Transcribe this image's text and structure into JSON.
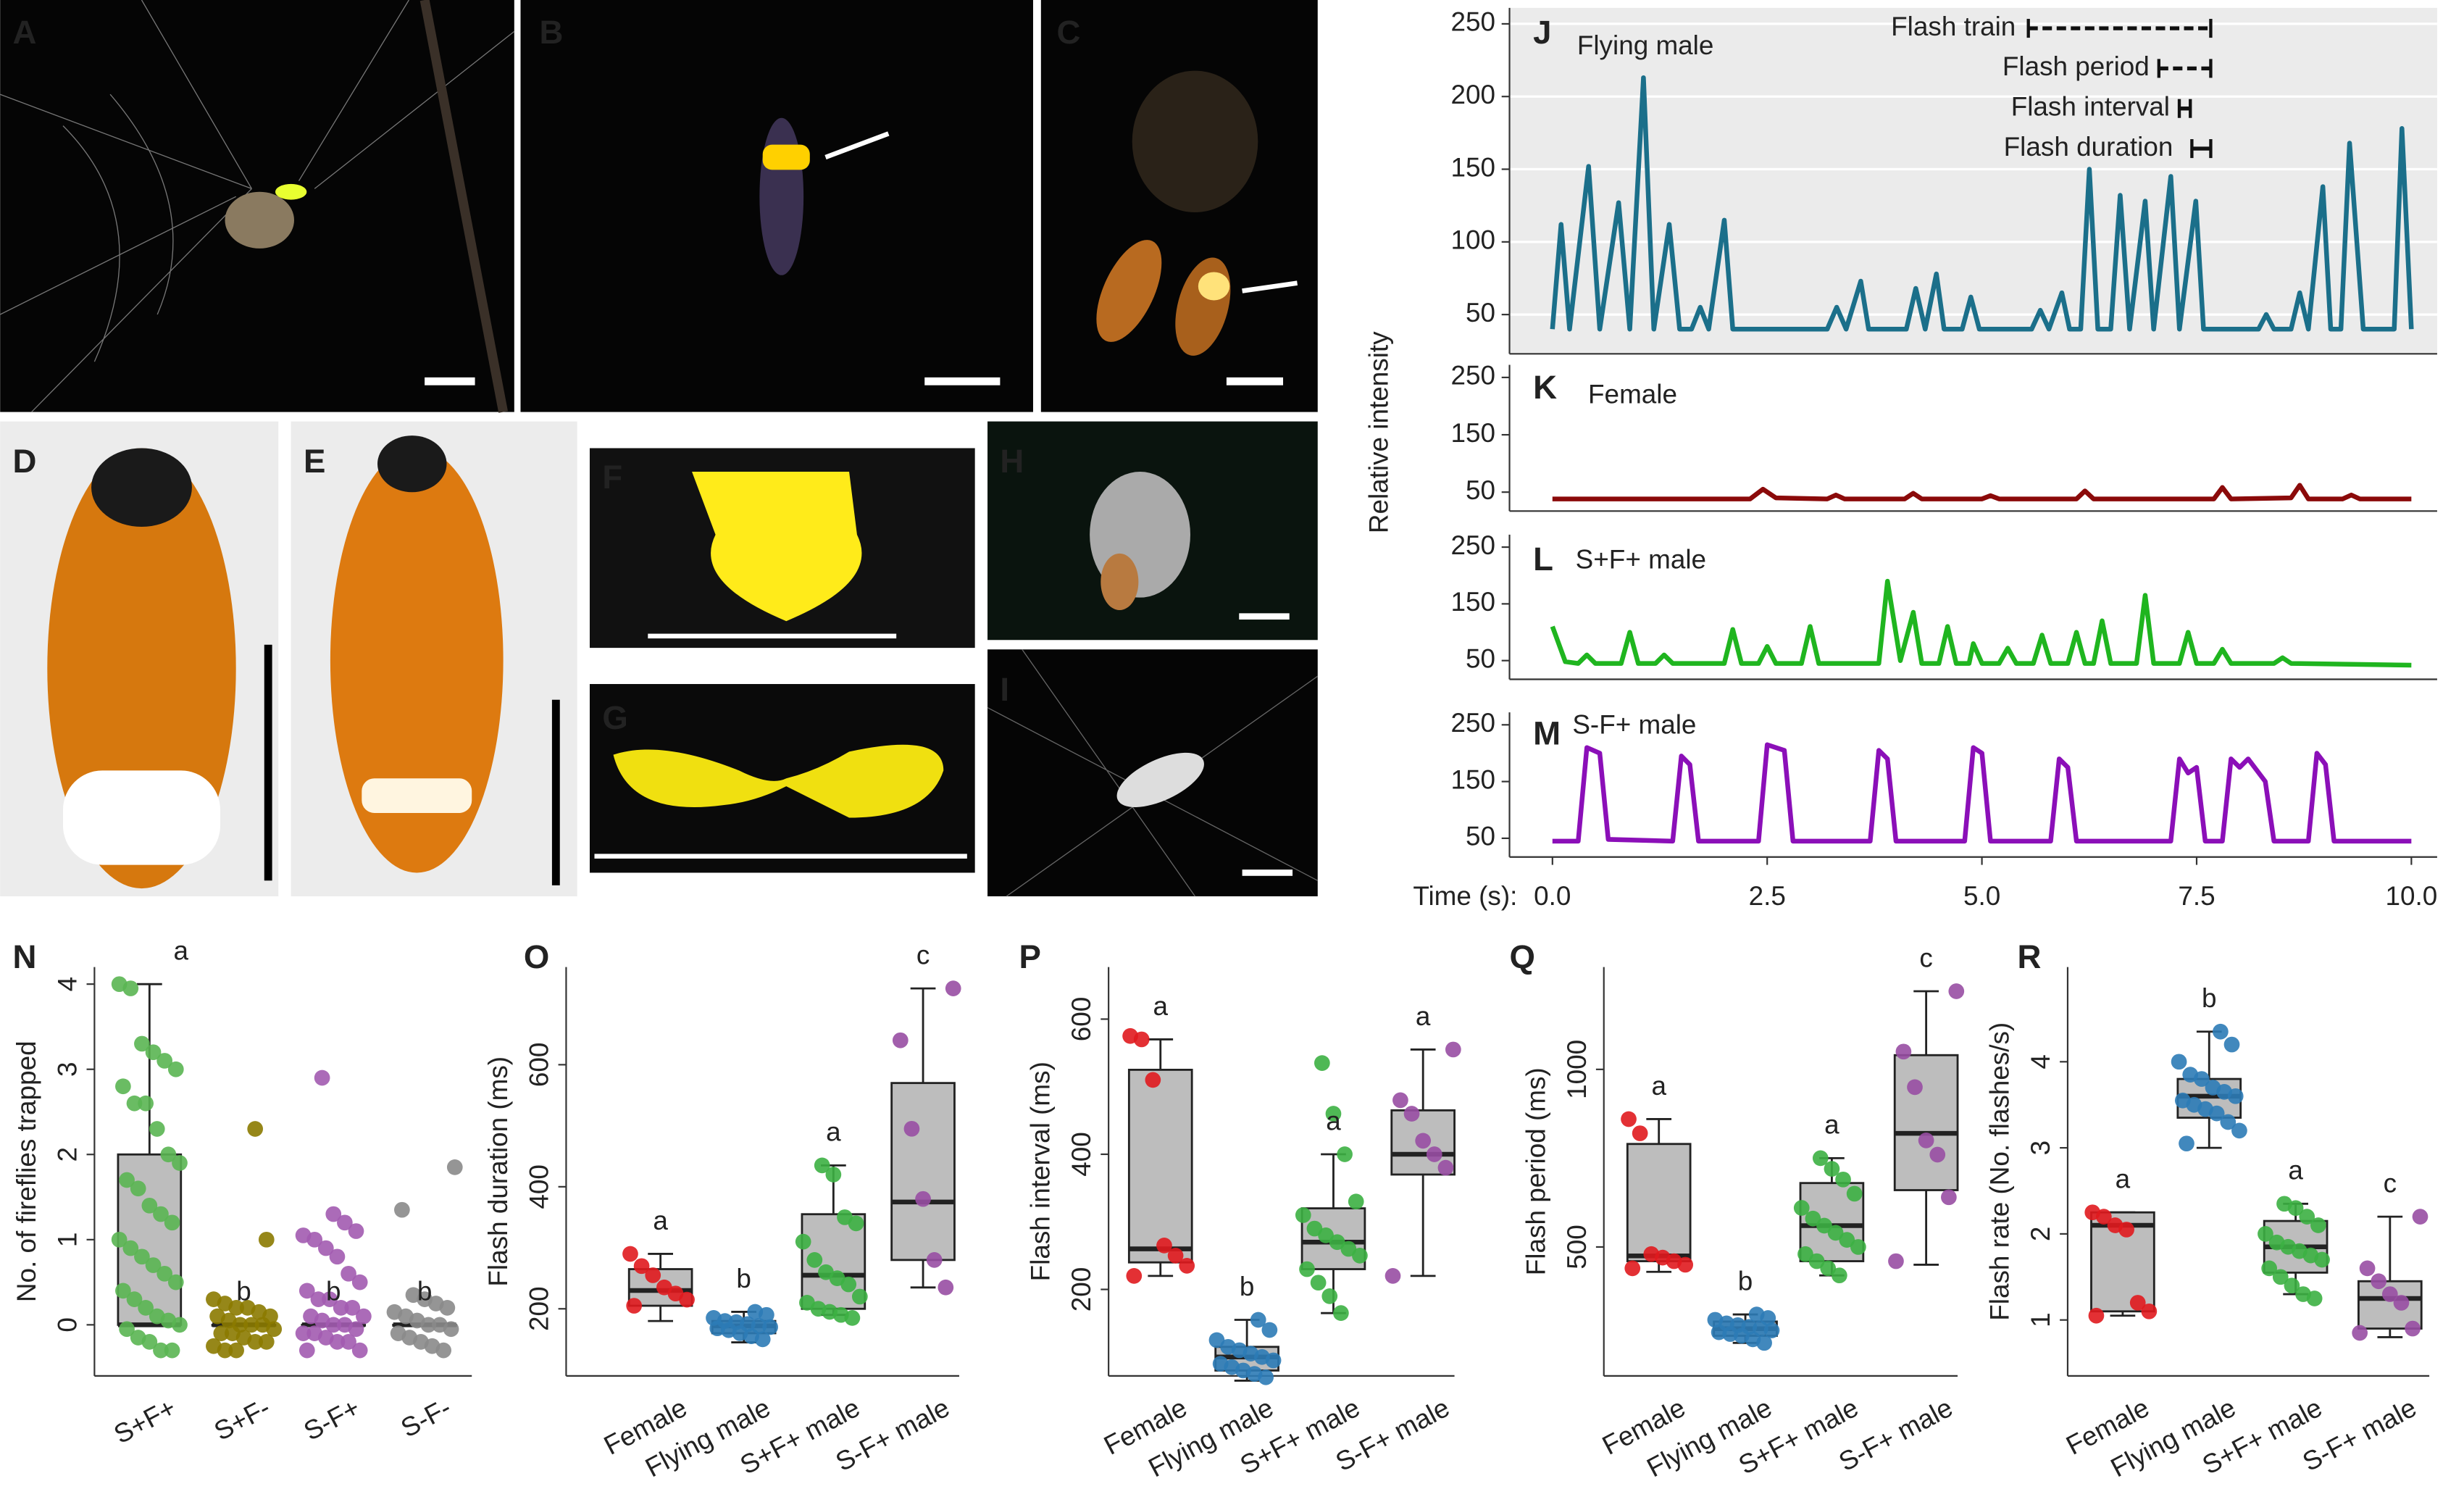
{
  "photo_labels": [
    "A",
    "B",
    "C",
    "D",
    "E",
    "F",
    "G",
    "H",
    "I"
  ],
  "chart_data": [
    {
      "type": "line",
      "label": "J",
      "ylabel": "Relative intensity",
      "grid": true,
      "annotations": [
        "Flash train",
        "Flash period",
        "Flash interval",
        "Flash duration"
      ],
      "xlim": [
        -0.5,
        10.3
      ],
      "ylim": [
        23,
        261
      ],
      "yticks": [
        50,
        100,
        150,
        200,
        250
      ],
      "x": [
        0,
        0.1,
        0.2,
        0.42,
        0.55,
        0.77,
        0.9,
        1.06,
        1.18,
        1.36,
        1.48,
        1.62,
        1.72,
        1.82,
        2.0,
        2.1,
        3.2,
        3.31,
        3.42,
        3.59,
        3.68,
        4.12,
        4.23,
        4.34,
        4.47,
        4.56,
        4.77,
        4.87,
        4.97,
        5.58,
        5.68,
        5.78,
        5.93,
        6.02,
        6.15,
        6.25,
        6.35,
        6.5,
        6.61,
        6.72,
        6.9,
        7.0,
        7.2,
        7.3,
        7.49,
        7.58,
        8.22,
        8.31,
        8.4,
        8.6,
        8.7,
        8.8,
        8.97,
        9.06,
        9.18,
        9.28,
        9.44,
        9.8,
        9.89,
        10.0
      ],
      "series": [
        {
          "name": "Flying male",
          "color": "#1b6f8a",
          "values": [
            40,
            112,
            40,
            152,
            40,
            127,
            40,
            213,
            40,
            112,
            40,
            40,
            55,
            40,
            115,
            40,
            40,
            55,
            40,
            73,
            40,
            40,
            68,
            40,
            78,
            40,
            40,
            62,
            40,
            40,
            53,
            40,
            65,
            40,
            40,
            150,
            40,
            40,
            132,
            40,
            128,
            40,
            145,
            40,
            128,
            40,
            40,
            50,
            40,
            40,
            65,
            40,
            138,
            40,
            40,
            168,
            40,
            40,
            178,
            40
          ]
        }
      ]
    },
    {
      "type": "line",
      "label": "K",
      "xlim": [
        -0.5,
        10.3
      ],
      "ylim": [
        17,
        272
      ],
      "yticks": [
        50,
        150,
        250
      ],
      "x": [
        0,
        2.3,
        2.45,
        2.6,
        3.2,
        3.3,
        3.4,
        4.1,
        4.2,
        4.3,
        5.0,
        5.1,
        5.2,
        6.1,
        6.2,
        6.3,
        7.7,
        7.8,
        7.9,
        8.6,
        8.7,
        8.8,
        9.2,
        9.3,
        9.4,
        10.0
      ],
      "series": [
        {
          "name": "Female",
          "color": "#8b0a0a",
          "values": [
            38,
            38,
            55,
            40,
            38,
            45,
            38,
            38,
            48,
            38,
            38,
            44,
            38,
            38,
            52,
            38,
            38,
            58,
            38,
            40,
            62,
            38,
            38,
            45,
            38,
            38
          ]
        }
      ]
    },
    {
      "type": "line",
      "label": "L",
      "xlim": [
        -0.5,
        10.3
      ],
      "ylim": [
        17,
        272
      ],
      "yticks": [
        50,
        150,
        250
      ],
      "x": [
        0,
        0.15,
        0.3,
        0.4,
        0.5,
        0.8,
        0.9,
        1.0,
        1.2,
        1.3,
        1.4,
        2.0,
        2.1,
        2.2,
        2.4,
        2.5,
        2.6,
        2.9,
        3.0,
        3.1,
        3.8,
        3.9,
        4.05,
        4.2,
        4.3,
        4.5,
        4.6,
        4.7,
        4.85,
        4.9,
        5.0,
        5.2,
        5.3,
        5.4,
        5.6,
        5.7,
        5.8,
        6.0,
        6.1,
        6.2,
        6.3,
        6.4,
        6.5,
        6.8,
        6.9,
        7.0,
        7.3,
        7.4,
        7.5,
        7.7,
        7.8,
        7.9,
        8.4,
        8.5,
        8.6,
        10.0
      ],
      "series": [
        {
          "name": "S+F+ male",
          "color": "#1fb51f",
          "values": [
            110,
            48,
            45,
            60,
            45,
            45,
            100,
            45,
            45,
            60,
            45,
            45,
            105,
            45,
            45,
            75,
            45,
            45,
            110,
            45,
            45,
            190,
            50,
            135,
            45,
            45,
            110,
            45,
            45,
            80,
            45,
            45,
            72,
            45,
            45,
            95,
            45,
            45,
            100,
            45,
            45,
            120,
            45,
            45,
            165,
            45,
            45,
            100,
            45,
            45,
            70,
            45,
            45,
            55,
            45,
            42
          ]
        }
      ]
    },
    {
      "type": "line",
      "label": "M",
      "xlabel": "Time (s):",
      "xlim": [
        -0.5,
        10.3
      ],
      "ylim": [
        17,
        272
      ],
      "yticks": [
        50,
        150,
        250
      ],
      "xticks": [
        {
          "value": 0,
          "label": "0.0"
        },
        2.5,
        {
          "value": 5,
          "label": "5.0"
        },
        7.5,
        {
          "value": 10,
          "label": "10.0"
        }
      ],
      "x": [
        0,
        0.3,
        0.4,
        0.55,
        0.65,
        1.4,
        1.5,
        1.6,
        1.7,
        2.4,
        2.5,
        2.7,
        2.8,
        3.7,
        3.8,
        3.9,
        4.0,
        4.8,
        4.9,
        5.0,
        5.1,
        5.8,
        5.9,
        6.0,
        6.1,
        7.2,
        7.3,
        7.4,
        7.5,
        7.6,
        7.8,
        7.9,
        8.0,
        8.1,
        8.3,
        8.4,
        8.8,
        8.9,
        9.0,
        9.1,
        10.0
      ],
      "series": [
        {
          "name": "S-F+ male",
          "color": "#8b0fb8",
          "values": [
            45,
            45,
            210,
            200,
            48,
            45,
            195,
            180,
            45,
            45,
            215,
            205,
            45,
            45,
            205,
            190,
            45,
            45,
            210,
            200,
            45,
            45,
            190,
            175,
            45,
            45,
            190,
            165,
            175,
            45,
            45,
            190,
            175,
            190,
            150,
            45,
            45,
            200,
            180,
            45,
            45
          ]
        }
      ]
    },
    {
      "type": "box",
      "label": "N",
      "ylabel": "No. of fireflies trapped",
      "ylim": [
        -0.6,
        4.2
      ],
      "yticks": [
        0,
        1,
        2,
        3,
        4
      ],
      "series": [
        {
          "name": "S+F+",
          "color": "#5ab552",
          "letter": "a",
          "box": [
            0,
            0,
            0,
            2,
            4
          ],
          "points": [
            4.0,
            3.95,
            3.3,
            3.2,
            3.1,
            3.0,
            2.8,
            2.6,
            2.6,
            2.3,
            2.0,
            1.9,
            1.7,
            1.6,
            1.4,
            1.3,
            1.2,
            1.0,
            0.9,
            0.8,
            0.7,
            0.6,
            0.5,
            0.4,
            0.3,
            0.2,
            0.1,
            0.05,
            0,
            -0.05,
            -0.15,
            -0.2,
            -0.3,
            -0.3
          ]
        },
        {
          "name": "S+F-",
          "color": "#8b7a00",
          "letter": "b",
          "box": [
            0,
            0,
            0,
            0,
            0
          ],
          "points": [
            2.3,
            1.0,
            0.3,
            0.25,
            0.2,
            0.2,
            0.15,
            0.1,
            0.1,
            0.05,
            0,
            0,
            0,
            -0.05,
            -0.1,
            -0.1,
            -0.15,
            -0.2,
            -0.2,
            -0.25,
            -0.3,
            -0.3
          ]
        },
        {
          "name": "S-F+",
          "color": "#a25bb0",
          "letter": "b",
          "box": [
            0,
            0,
            0,
            0,
            0
          ],
          "points": [
            2.9,
            1.3,
            1.2,
            1.1,
            1.05,
            1.0,
            0.9,
            0.8,
            0.6,
            0.5,
            0.4,
            0.3,
            0.3,
            0.2,
            0.2,
            0.1,
            0.1,
            0.05,
            0,
            0,
            -0.05,
            -0.1,
            -0.1,
            -0.15,
            -0.2,
            -0.2,
            -0.3,
            -0.3
          ]
        },
        {
          "name": "S-F-",
          "color": "#8a8a8a",
          "letter": "b",
          "box": [
            0,
            0,
            0,
            0,
            0
          ],
          "points": [
            1.85,
            1.35,
            0.35,
            0.3,
            0.25,
            0.2,
            0.15,
            0.1,
            0.05,
            0,
            0,
            -0.05,
            -0.1,
            -0.15,
            -0.2,
            -0.25,
            -0.3
          ]
        }
      ]
    },
    {
      "type": "box",
      "label": "O",
      "ylabel": "Flash duration (ms)",
      "ylim": [
        90,
        760
      ],
      "yticks": [
        200,
        400,
        600
      ],
      "series": [
        {
          "name": "Female",
          "color": "#e0191e",
          "letter": "a",
          "box": [
            180,
            205,
            230,
            265,
            290
          ],
          "points": [
            290,
            270,
            255,
            235,
            225,
            215,
            205
          ]
        },
        {
          "name": "Flying male",
          "color": "#2c7bb6",
          "letter": "b",
          "box": [
            145,
            160,
            172,
            180,
            195
          ],
          "points": [
            195,
            190,
            185,
            180,
            178,
            175,
            172,
            170,
            168,
            165,
            160,
            155,
            150
          ]
        },
        {
          "name": "S+F+ male",
          "color": "#3cb043",
          "letter": "a",
          "box": [
            190,
            200,
            255,
            355,
            435
          ],
          "points": [
            435,
            420,
            350,
            340,
            310,
            280,
            260,
            250,
            240,
            220,
            210,
            200,
            195,
            190,
            185
          ]
        },
        {
          "name": "S-F+ male",
          "color": "#984ea3",
          "letter": "c",
          "box": [
            235,
            280,
            375,
            570,
            725
          ],
          "points": [
            725,
            640,
            495,
            380,
            280,
            235
          ]
        }
      ]
    },
    {
      "type": "box",
      "label": "P",
      "ylabel": "Flash interval (ms)",
      "ylim": [
        72,
        677
      ],
      "yticks": [
        200,
        400,
        600
      ],
      "series": [
        {
          "name": "Female",
          "color": "#e0191e",
          "letter": "a",
          "box": [
            220,
            240,
            260,
            525,
            570
          ],
          "points": [
            575,
            570,
            510,
            265,
            250,
            235,
            220
          ]
        },
        {
          "name": "Flying male",
          "color": "#2c7bb6",
          "letter": "b",
          "box": [
            65,
            80,
            100,
            115,
            155
          ],
          "points": [
            155,
            140,
            125,
            115,
            110,
            105,
            100,
            95,
            90,
            85,
            80,
            75,
            70
          ]
        },
        {
          "name": "S+F+ male",
          "color": "#3cb043",
          "letter": "a",
          "box": [
            165,
            230,
            270,
            320,
            400
          ],
          "points": [
            535,
            460,
            400,
            330,
            310,
            290,
            280,
            270,
            260,
            250,
            230,
            210,
            190,
            165
          ]
        },
        {
          "name": "S-F+ male",
          "color": "#984ea3",
          "letter": "a",
          "box": [
            220,
            370,
            400,
            465,
            555
          ],
          "points": [
            555,
            480,
            460,
            420,
            400,
            380,
            220
          ]
        }
      ]
    },
    {
      "type": "box",
      "label": "Q",
      "ylabel": "Flash period (ms)",
      "ylim": [
        137,
        1288
      ],
      "yticks": [
        500,
        1000
      ],
      "series": [
        {
          "name": "Female",
          "color": "#e0191e",
          "letter": "a",
          "box": [
            430,
            460,
            475,
            790,
            860
          ],
          "points": [
            860,
            820,
            480,
            470,
            460,
            450,
            440
          ]
        },
        {
          "name": "Flying male",
          "color": "#2c7bb6",
          "letter": "b",
          "box": [
            230,
            250,
            270,
            290,
            310
          ],
          "points": [
            310,
            300,
            295,
            285,
            280,
            275,
            270,
            265,
            260,
            255,
            250,
            240,
            230
          ]
        },
        {
          "name": "S+F+ male",
          "color": "#3cb043",
          "letter": "a",
          "box": [
            420,
            460,
            560,
            680,
            750
          ],
          "points": [
            750,
            720,
            690,
            650,
            610,
            580,
            560,
            540,
            520,
            500,
            480,
            460,
            440,
            420
          ]
        },
        {
          "name": "S-F+ male",
          "color": "#984ea3",
          "letter": "c",
          "box": [
            450,
            660,
            820,
            1040,
            1220
          ],
          "points": [
            1220,
            1050,
            950,
            800,
            760,
            640,
            460
          ]
        }
      ]
    },
    {
      "type": "box",
      "label": "R",
      "ylabel": "Flash rate (No. flashes/s)",
      "ylim": [
        0.35,
        5.1
      ],
      "yticks": [
        1,
        2,
        3,
        4
      ],
      "series": [
        {
          "name": "Female",
          "color": "#e0191e",
          "letter": "a",
          "box": [
            1.05,
            1.1,
            2.1,
            2.25,
            2.25
          ],
          "points": [
            2.25,
            2.2,
            2.1,
            2.05,
            1.2,
            1.1,
            1.05
          ]
        },
        {
          "name": "Flying male",
          "color": "#2c7bb6",
          "letter": "b",
          "box": [
            3.0,
            3.35,
            3.6,
            3.8,
            4.35
          ],
          "points": [
            4.35,
            4.2,
            4.0,
            3.85,
            3.8,
            3.7,
            3.65,
            3.6,
            3.55,
            3.5,
            3.45,
            3.4,
            3.3,
            3.2,
            3.05
          ]
        },
        {
          "name": "S+F+ male",
          "color": "#3cb043",
          "letter": "a",
          "box": [
            1.3,
            1.55,
            1.85,
            2.15,
            2.35
          ],
          "points": [
            2.35,
            2.3,
            2.2,
            2.1,
            2.0,
            1.9,
            1.85,
            1.8,
            1.75,
            1.7,
            1.6,
            1.5,
            1.4,
            1.3,
            1.25
          ]
        },
        {
          "name": "S-F+ male",
          "color": "#984ea3",
          "letter": "c",
          "box": [
            0.8,
            0.9,
            1.25,
            1.45,
            2.2
          ],
          "points": [
            2.2,
            1.6,
            1.45,
            1.3,
            1.2,
            0.9,
            0.85
          ]
        }
      ]
    }
  ]
}
